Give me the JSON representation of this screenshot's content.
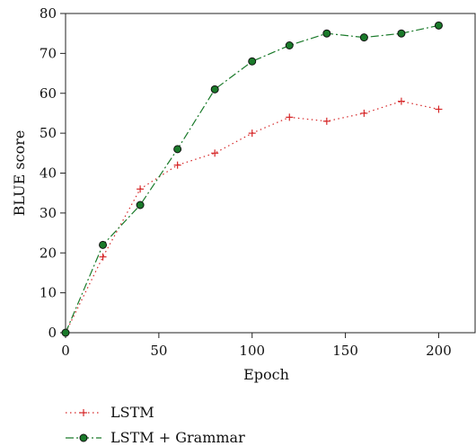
{
  "chart_data": {
    "type": "line",
    "xlabel": "Epoch",
    "ylabel": "BLUE score",
    "xlim": [
      0,
      220
    ],
    "ylim": [
      0,
      80
    ],
    "xticks": [
      0,
      50,
      100,
      150,
      200
    ],
    "yticks": [
      0,
      10,
      20,
      30,
      40,
      50,
      60,
      70,
      80
    ],
    "grid": false,
    "legend_position": "bottom-left, below plot",
    "series": [
      {
        "name": "LSTM",
        "color": "#d62728",
        "line_style": "dotted",
        "marker": "plus",
        "x": [
          0,
          20,
          40,
          60,
          80,
          100,
          120,
          140,
          160,
          180,
          200
        ],
        "y": [
          0,
          19,
          36,
          42,
          45,
          50,
          54,
          53,
          55,
          58,
          56
        ]
      },
      {
        "name": "LSTM + Grammar",
        "color": "#1a7a2a",
        "line_style": "dash-dot",
        "marker": "circle",
        "x": [
          0,
          20,
          40,
          60,
          80,
          100,
          120,
          140,
          160,
          180,
          200
        ],
        "y": [
          0,
          22,
          32,
          46,
          61,
          68,
          72,
          75,
          74,
          75,
          77
        ]
      }
    ]
  }
}
